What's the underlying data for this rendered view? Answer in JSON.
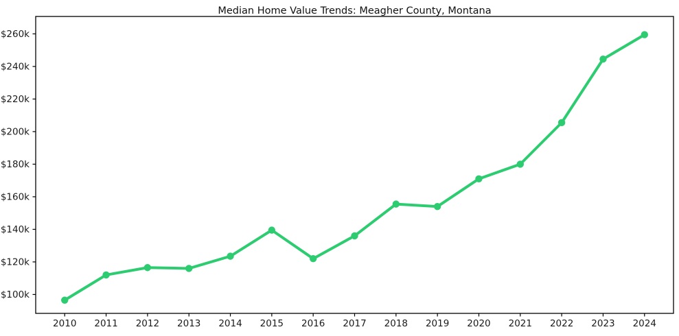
{
  "page": {
    "background_color": "#ffffff"
  },
  "chart_data": {
    "type": "line",
    "title": "Median Home Value Trends: Meagher County, Montana",
    "x": [
      2010,
      2011,
      2012,
      2013,
      2014,
      2015,
      2016,
      2017,
      2018,
      2019,
      2020,
      2021,
      2022,
      2023,
      2024
    ],
    "x_tick_labels": [
      "2010",
      "2011",
      "2012",
      "2013",
      "2014",
      "2015",
      "2016",
      "2017",
      "2018",
      "2019",
      "2020",
      "2021",
      "2022",
      "2023",
      "2024"
    ],
    "series": [
      {
        "name": "median-home-value",
        "color": "#2ecc71",
        "marker": "circle",
        "values": [
          96500,
          112000,
          116500,
          116000,
          123500,
          139500,
          122000,
          136000,
          155500,
          154000,
          171000,
          180000,
          205500,
          244500,
          259500
        ]
      }
    ],
    "y_ticks": [
      {
        "label": "$100k",
        "value": 100000
      },
      {
        "label": "$120k",
        "value": 120000
      },
      {
        "label": "$140k",
        "value": 140000
      },
      {
        "label": "$160k",
        "value": 160000
      },
      {
        "label": "$180k",
        "value": 180000
      },
      {
        "label": "$200k",
        "value": 200000
      },
      {
        "label": "$220k",
        "value": 220000
      },
      {
        "label": "$240k",
        "value": 240000
      },
      {
        "label": "$260k",
        "value": 260000
      }
    ],
    "xlabel": "",
    "ylabel": "",
    "xlim": [
      2009.3,
      2024.7
    ],
    "ylim": [
      88400,
      270700
    ],
    "grid": false,
    "legend_position": "none",
    "axis_color": "#000000",
    "text_color": "#1a1a1a"
  }
}
